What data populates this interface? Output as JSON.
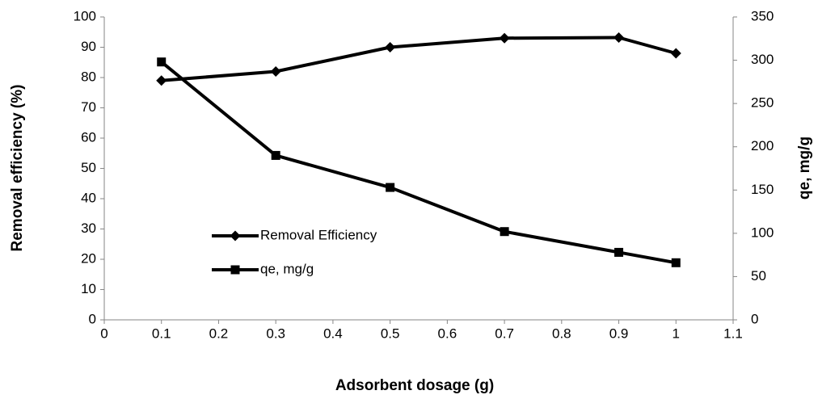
{
  "chart_data": {
    "type": "line",
    "x": [
      0.1,
      0.3,
      0.5,
      0.7,
      0.9,
      1
    ],
    "series": [
      {
        "name": "Removal Efficiency",
        "color": "#000000",
        "marker": "diamond",
        "values": [
          79,
          82,
          90,
          93,
          93.2,
          88
        ]
      },
      {
        "name": "qe, mg/g",
        "color": "#000000",
        "marker": "square",
        "axis": "y2",
        "values": [
          298,
          190,
          153,
          102,
          78,
          66
        ]
      }
    ],
    "xlabel": "Adsorbent dosage (g)",
    "ylabel": "Removal efficiency (%)",
    "y2label": "qe, mg/g",
    "xlim": [
      0,
      1.1
    ],
    "xticks": [
      0,
      0.1,
      0.2,
      0.3,
      0.4,
      0.5,
      0.6,
      0.7,
      0.8,
      0.9,
      1,
      1.1
    ],
    "ylim": [
      0,
      100
    ],
    "yticks": [
      0,
      10,
      20,
      30,
      40,
      50,
      60,
      70,
      80,
      90,
      100
    ],
    "y2lim": [
      0,
      350
    ],
    "y2ticks": [
      0,
      50,
      100,
      150,
      200,
      250,
      300,
      350
    ],
    "grid": false,
    "legend": "center-left"
  }
}
